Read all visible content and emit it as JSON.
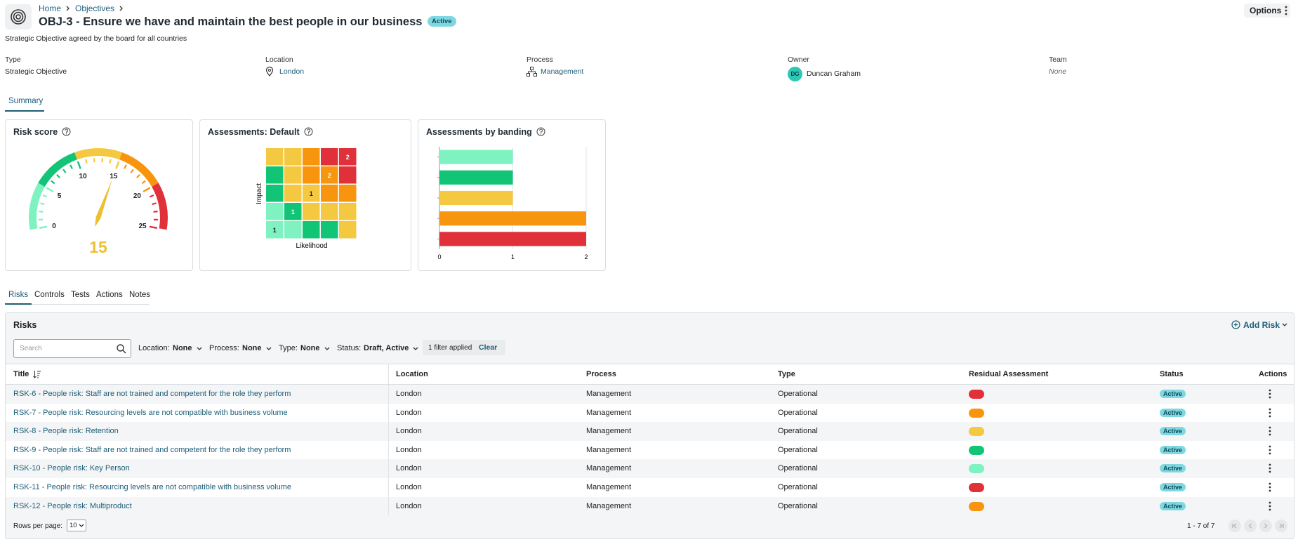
{
  "header": {
    "breadcrumb": [
      "Home",
      "Objectives"
    ],
    "title": "OBJ-3 - Ensure we have and maintain the best people in our business",
    "status": "Active",
    "options": "Options",
    "description": "Strategic Objective agreed by the board for all countries"
  },
  "fields": [
    {
      "label": "Type",
      "value": "Strategic Objective"
    },
    {
      "label": "Location",
      "value": "London"
    },
    {
      "label": "Process",
      "value": "Management"
    },
    {
      "label": "Owner",
      "value": "Duncan Graham",
      "initials": "DG"
    },
    {
      "label": "Team",
      "value": "None"
    }
  ],
  "summary_tab": "Summary",
  "chart_data": [
    {
      "type": "gauge",
      "title": "Risk score",
      "value": 15,
      "ylim": [
        0,
        25
      ],
      "yticks": [
        0,
        5,
        10,
        15,
        20,
        25
      ],
      "value_color": "#ecc02f",
      "bands": [
        {
          "from": 0,
          "to": 5,
          "color": "#7ef2c0"
        },
        {
          "from": 5,
          "to": 10,
          "color": "#12c576"
        },
        {
          "from": 10,
          "to": 15,
          "color": "#f5c842"
        },
        {
          "from": 15,
          "to": 20,
          "color": "#f7960e"
        },
        {
          "from": 20,
          "to": 25,
          "color": "#e03039"
        }
      ]
    },
    {
      "type": "heatmap",
      "title": "Assessments: Default",
      "x_label": "Likelihood",
      "y_label": "Impact",
      "colors": [
        [
          "#f5c842",
          "#f5c842",
          "#f7960e",
          "#e03039",
          "#e03039"
        ],
        [
          "#12c576",
          "#f5c842",
          "#f7960e",
          "#f7960e",
          "#e03039"
        ],
        [
          "#12c576",
          "#f5c842",
          "#f5c842",
          "#f7960e",
          "#f7960e"
        ],
        [
          "#7ef2c0",
          "#12c576",
          "#f5c842",
          "#f5c842",
          "#f5c842"
        ],
        [
          "#7ef2c0",
          "#7ef2c0",
          "#12c576",
          "#12c576",
          "#f5c842"
        ]
      ],
      "values": [
        [
          null,
          null,
          null,
          null,
          2
        ],
        [
          null,
          null,
          null,
          2,
          null
        ],
        [
          null,
          null,
          1,
          null,
          null
        ],
        [
          null,
          1,
          null,
          null,
          null
        ],
        [
          1,
          null,
          null,
          null,
          null
        ]
      ]
    },
    {
      "type": "bar",
      "orientation": "horizontal",
      "title": "Assessments by banding",
      "values": [
        1,
        1,
        1,
        2,
        2
      ],
      "colors": [
        "#7ef2c0",
        "#12c576",
        "#f5c842",
        "#f7960e",
        "#e03039"
      ],
      "xlim": [
        0,
        2
      ],
      "xticks": [
        0,
        1,
        2
      ],
      "grid": true
    }
  ],
  "tabs": [
    "Risks",
    "Controls",
    "Tests",
    "Actions",
    "Notes"
  ],
  "risks": {
    "title": "Risks",
    "add": "Add Risk",
    "search_placeholder": "Search",
    "filters": [
      {
        "label": "Location:",
        "value": "None"
      },
      {
        "label": "Process:",
        "value": "None"
      },
      {
        "label": "Type:",
        "value": "None"
      },
      {
        "label": "Status:",
        "value": "Draft, Active"
      }
    ],
    "filter_count": "1 filter applied",
    "clear": "Clear",
    "columns": [
      "Title",
      "Location",
      "Process",
      "Type",
      "Residual Assessment",
      "Status",
      "Actions"
    ],
    "rows": [
      {
        "title": "RSK-6 - People risk: Staff are not trained and competent for the role they perform",
        "location": "London",
        "process": "Management",
        "type": "Operational",
        "residual_color": "#e03039",
        "status": "Active"
      },
      {
        "title": "RSK-7 - People risk: Resourcing levels are not compatible with business volume",
        "location": "London",
        "process": "Management",
        "type": "Operational",
        "residual_color": "#f7960e",
        "status": "Active"
      },
      {
        "title": "RSK-8 - People risk: Retention",
        "location": "London",
        "process": "Management",
        "type": "Operational",
        "residual_color": "#f5c842",
        "status": "Active"
      },
      {
        "title": "RSK-9 - People risk: Staff are not trained and competent for the role they perform",
        "location": "London",
        "process": "Management",
        "type": "Operational",
        "residual_color": "#12c576",
        "status": "Active"
      },
      {
        "title": "RSK-10 - People risk: Key Person",
        "location": "London",
        "process": "Management",
        "type": "Operational",
        "residual_color": "#7ef2c0",
        "status": "Active"
      },
      {
        "title": "RSK-11 - People risk: Resourcing levels are not compatible with business volume",
        "location": "London",
        "process": "Management",
        "type": "Operational",
        "residual_color": "#e03039",
        "status": "Active"
      },
      {
        "title": "RSK-12 - People risk: Multiproduct",
        "location": "London",
        "process": "Management",
        "type": "Operational",
        "residual_color": "#f7960e",
        "status": "Active"
      }
    ],
    "rows_per_page_label": "Rows per page:",
    "rows_per_page": 10,
    "pagination": "1 - 7 of 7"
  }
}
